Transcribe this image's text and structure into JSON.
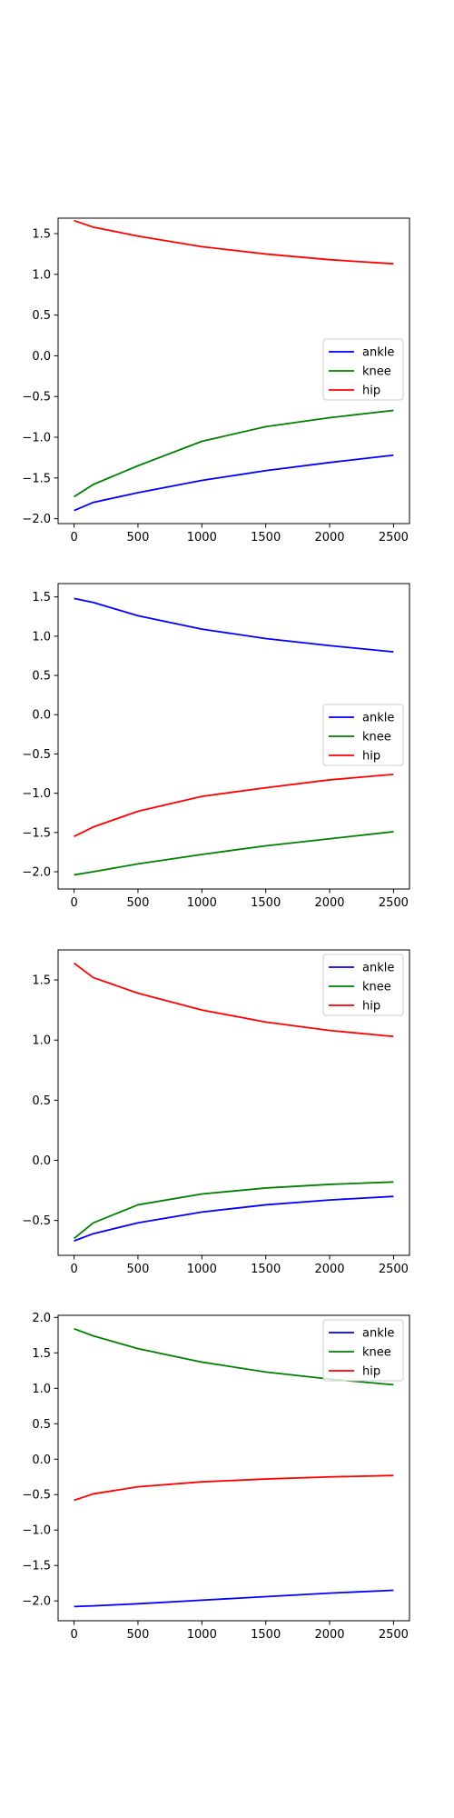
{
  "chart_data": [
    {
      "type": "line",
      "title": "",
      "xlabel": "",
      "ylabel": "",
      "xlim": [
        -125,
        2625
      ],
      "ylim": [
        -2.06,
        1.69
      ],
      "xticks": [
        0,
        500,
        1000,
        1500,
        2000,
        2500
      ],
      "xtick_labels": [
        "0",
        "500",
        "1000",
        "1500",
        "2000",
        "2500"
      ],
      "yticks": [
        -2.0,
        -1.5,
        -1.0,
        -0.5,
        0.0,
        0.5,
        1.0,
        1.5
      ],
      "ytick_labels": [
        "−2.0",
        "−1.5",
        "−1.0",
        "−0.5",
        "0.0",
        "0.5",
        "1.0",
        "1.5"
      ],
      "legend": "center-right",
      "grid": false,
      "x": [
        0,
        150,
        500,
        1000,
        1500,
        2000,
        2500
      ],
      "series": [
        {
          "name": "ankle",
          "color": "#0000ff",
          "values": [
            -1.9,
            -1.8,
            -1.68,
            -1.53,
            -1.41,
            -1.31,
            -1.22
          ]
        },
        {
          "name": "knee",
          "color": "#008000",
          "values": [
            -1.73,
            -1.58,
            -1.35,
            -1.05,
            -0.87,
            -0.76,
            -0.67
          ]
        },
        {
          "name": "hip",
          "color": "#ff0000",
          "values": [
            1.66,
            1.58,
            1.47,
            1.34,
            1.25,
            1.18,
            1.13
          ]
        }
      ]
    },
    {
      "type": "line",
      "title": "",
      "xlabel": "",
      "ylabel": "",
      "xlim": [
        -125,
        2625
      ],
      "ylim": [
        -2.22,
        1.67
      ],
      "xticks": [
        0,
        500,
        1000,
        1500,
        2000,
        2500
      ],
      "xtick_labels": [
        "0",
        "500",
        "1000",
        "1500",
        "2000",
        "2500"
      ],
      "yticks": [
        -2.0,
        -1.5,
        -1.0,
        -0.5,
        0.0,
        0.5,
        1.0,
        1.5
      ],
      "ytick_labels": [
        "−2.0",
        "−1.5",
        "−1.0",
        "−0.5",
        "0.0",
        "0.5",
        "1.0",
        "1.5"
      ],
      "legend": "center-right",
      "grid": false,
      "x": [
        0,
        150,
        500,
        1000,
        1500,
        2000,
        2500
      ],
      "series": [
        {
          "name": "ankle",
          "color": "#0000ff",
          "values": [
            1.48,
            1.43,
            1.26,
            1.09,
            0.97,
            0.88,
            0.8
          ]
        },
        {
          "name": "knee",
          "color": "#008000",
          "values": [
            -2.04,
            -2.0,
            -1.9,
            -1.78,
            -1.67,
            -1.58,
            -1.49
          ]
        },
        {
          "name": "hip",
          "color": "#ff0000",
          "values": [
            -1.55,
            -1.43,
            -1.23,
            -1.04,
            -0.93,
            -0.83,
            -0.76
          ]
        }
      ]
    },
    {
      "type": "line",
      "title": "",
      "xlabel": "",
      "ylabel": "",
      "xlim": [
        -125,
        2625
      ],
      "ylim": [
        -0.79,
        1.75
      ],
      "xticks": [
        0,
        500,
        1000,
        1500,
        2000,
        2500
      ],
      "xtick_labels": [
        "0",
        "500",
        "1000",
        "1500",
        "2000",
        "2500"
      ],
      "yticks": [
        -0.5,
        0.0,
        0.5,
        1.0,
        1.5
      ],
      "ytick_labels": [
        "−0.5",
        "0.0",
        "0.5",
        "1.0",
        "1.5"
      ],
      "legend": "upper-right",
      "grid": false,
      "x": [
        0,
        150,
        500,
        1000,
        1500,
        2000,
        2500
      ],
      "series": [
        {
          "name": "ankle",
          "color": "#0000ff",
          "values": [
            -0.67,
            -0.61,
            -0.52,
            -0.43,
            -0.37,
            -0.33,
            -0.3
          ]
        },
        {
          "name": "knee",
          "color": "#008000",
          "values": [
            -0.65,
            -0.52,
            -0.37,
            -0.28,
            -0.23,
            -0.2,
            -0.18
          ]
        },
        {
          "name": "hip",
          "color": "#ff0000",
          "values": [
            1.64,
            1.52,
            1.39,
            1.25,
            1.15,
            1.08,
            1.03
          ]
        }
      ]
    },
    {
      "type": "line",
      "title": "",
      "xlabel": "",
      "ylabel": "",
      "xlim": [
        -125,
        2625
      ],
      "ylim": [
        -2.28,
        2.03
      ],
      "xticks": [
        0,
        500,
        1000,
        1500,
        2000,
        2500
      ],
      "xtick_labels": [
        "0",
        "500",
        "1000",
        "1500",
        "2000",
        "2500"
      ],
      "yticks": [
        -2.0,
        -1.5,
        -1.0,
        -0.5,
        0.0,
        0.5,
        1.0,
        1.5,
        2.0
      ],
      "ytick_labels": [
        "−2.0",
        "−1.5",
        "−1.0",
        "−0.5",
        "0.0",
        "0.5",
        "1.0",
        "1.5",
        "2.0"
      ],
      "legend": "upper-right",
      "grid": false,
      "x": [
        0,
        150,
        500,
        1000,
        1500,
        2000,
        2500
      ],
      "series": [
        {
          "name": "ankle",
          "color": "#0000ff",
          "values": [
            -2.08,
            -2.07,
            -2.04,
            -1.99,
            -1.94,
            -1.89,
            -1.85
          ]
        },
        {
          "name": "knee",
          "color": "#008000",
          "values": [
            1.84,
            1.74,
            1.56,
            1.37,
            1.23,
            1.13,
            1.05
          ]
        },
        {
          "name": "hip",
          "color": "#ff0000",
          "values": [
            -0.58,
            -0.49,
            -0.39,
            -0.32,
            -0.28,
            -0.25,
            -0.23
          ]
        }
      ]
    }
  ]
}
